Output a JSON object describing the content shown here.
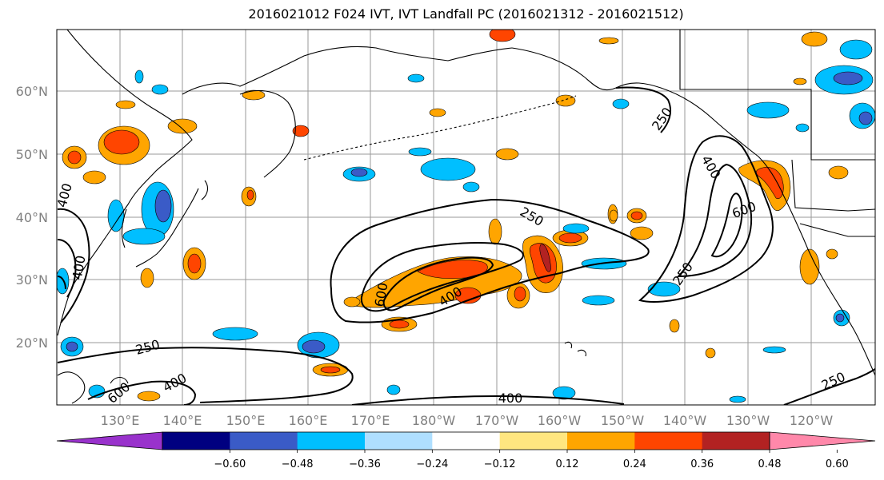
{
  "title": "2016021012 F024 IVT, IVT Landfall PC (2016021312 - 2016021512)",
  "axes": {
    "lat_labels": [
      "60°N",
      "50°N",
      "40°N",
      "30°N",
      "20°N"
    ],
    "lon_labels": [
      "130°E",
      "140°E",
      "150°E",
      "160°E",
      "170°E",
      "180°W",
      "170°W",
      "160°W",
      "150°W",
      "140°W",
      "130°W",
      "120°W"
    ],
    "label_color": "#808080"
  },
  "contours": {
    "labels": [
      "250",
      "250",
      "250",
      "250",
      "250",
      "400",
      "400",
      "400",
      "400",
      "400",
      "400",
      "600",
      "600",
      "600"
    ],
    "color": "#000000"
  },
  "colorbar": {
    "colors": [
      "#9932cc",
      "#000080",
      "#3a5bc7",
      "#00bfff",
      "#afdfff",
      "#ffffff",
      "#ffe680",
      "#ffa500",
      "#ff4500",
      "#b22222",
      "#ff88aa"
    ],
    "tick_labels": [
      "−0.60",
      "−0.48",
      "−0.36",
      "−0.24",
      "−0.12",
      "0.12",
      "0.24",
      "0.36",
      "0.48",
      "0.60"
    ]
  }
}
